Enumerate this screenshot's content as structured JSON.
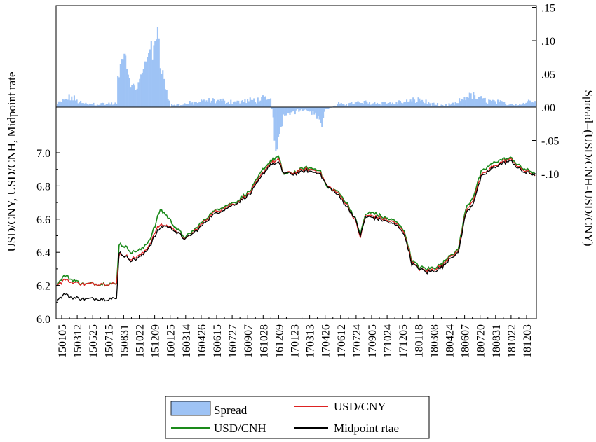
{
  "chart_data": {
    "type": "line",
    "title": "",
    "ylabel_left": "USD/CNY, USD/CNH, Midpoint rate",
    "ylabel_right": "Spread=(USD/CNH-USD/CNY)",
    "x_ticks": [
      "150105",
      "150312",
      "150525",
      "150715",
      "150831",
      "151022",
      "151209",
      "160125",
      "160314",
      "160426",
      "160615",
      "160727",
      "160907",
      "161028",
      "161209",
      "170123",
      "170313",
      "170426",
      "170612",
      "170724",
      "170905",
      "171024",
      "171205",
      "180118",
      "180308",
      "180424",
      "180607",
      "180720",
      "180831",
      "181022",
      "181203"
    ],
    "y_left": {
      "ticks": [
        "6.0",
        "6.2",
        "6.4",
        "6.6",
        "6.8",
        "7.0"
      ],
      "range": [
        6.0,
        7.0
      ]
    },
    "y_right": {
      "ticks": [
        ".15",
        ".10",
        ".05",
        ".00",
        "-.05",
        "-.10"
      ],
      "range": [
        -0.1,
        0.15
      ]
    },
    "legend": {
      "position": "bottom-center",
      "items": [
        {
          "label": "Spread",
          "kind": "bar",
          "color": "#9ec3f5"
        },
        {
          "label": "USD/CNY",
          "kind": "line",
          "color": "#dd2222"
        },
        {
          "label": "USD/CNH",
          "kind": "line",
          "color": "#1a8a1a"
        },
        {
          "label": "Midpoint rtae",
          "kind": "line",
          "color": "#000000"
        }
      ]
    },
    "series": [
      {
        "name": "USD/CNY",
        "color": "#dd2222",
        "anchors": [
          [
            0,
            6.21
          ],
          [
            3,
            6.22
          ],
          [
            6,
            6.24
          ],
          [
            10,
            6.22
          ],
          [
            20,
            6.21
          ],
          [
            36,
            6.21
          ],
          [
            46,
            6.21
          ],
          [
            48,
            6.39
          ],
          [
            52,
            6.38
          ],
          [
            58,
            6.36
          ],
          [
            66,
            6.39
          ],
          [
            72,
            6.45
          ],
          [
            76,
            6.52
          ],
          [
            80,
            6.57
          ],
          [
            84,
            6.56
          ],
          [
            90,
            6.55
          ],
          [
            94,
            6.51
          ],
          [
            100,
            6.48
          ],
          [
            110,
            6.55
          ],
          [
            120,
            6.63
          ],
          [
            130,
            6.67
          ],
          [
            140,
            6.7
          ],
          [
            150,
            6.76
          ],
          [
            160,
            6.88
          ],
          [
            166,
            6.94
          ],
          [
            172,
            6.96
          ],
          [
            176,
            6.88
          ],
          [
            184,
            6.88
          ],
          [
            194,
            6.9
          ],
          [
            204,
            6.89
          ],
          [
            210,
            6.8
          ],
          [
            218,
            6.76
          ],
          [
            226,
            6.68
          ],
          [
            232,
            6.59
          ],
          [
            236,
            6.49
          ],
          [
            240,
            6.62
          ],
          [
            246,
            6.62
          ],
          [
            254,
            6.6
          ],
          [
            262,
            6.58
          ],
          [
            268,
            6.55
          ],
          [
            272,
            6.47
          ],
          [
            276,
            6.34
          ],
          [
            282,
            6.3
          ],
          [
            288,
            6.29
          ],
          [
            294,
            6.3
          ],
          [
            300,
            6.32
          ],
          [
            306,
            6.38
          ],
          [
            312,
            6.4
          ],
          [
            318,
            6.64
          ],
          [
            324,
            6.72
          ],
          [
            330,
            6.86
          ],
          [
            336,
            6.9
          ],
          [
            342,
            6.93
          ],
          [
            348,
            6.95
          ],
          [
            354,
            6.96
          ],
          [
            358,
            6.92
          ],
          [
            364,
            6.89
          ],
          [
            372,
            6.87
          ]
        ]
      },
      {
        "name": "USD/CNH",
        "color": "#1a8a1a",
        "anchors": [
          [
            0,
            6.21
          ],
          [
            3,
            6.24
          ],
          [
            6,
            6.26
          ],
          [
            10,
            6.24
          ],
          [
            20,
            6.21
          ],
          [
            36,
            6.21
          ],
          [
            46,
            6.21
          ],
          [
            48,
            6.45
          ],
          [
            52,
            6.44
          ],
          [
            58,
            6.4
          ],
          [
            66,
            6.42
          ],
          [
            72,
            6.48
          ],
          [
            76,
            6.56
          ],
          [
            80,
            6.66
          ],
          [
            84,
            6.63
          ],
          [
            90,
            6.57
          ],
          [
            94,
            6.53
          ],
          [
            100,
            6.49
          ],
          [
            110,
            6.56
          ],
          [
            120,
            6.64
          ],
          [
            130,
            6.68
          ],
          [
            140,
            6.71
          ],
          [
            150,
            6.77
          ],
          [
            160,
            6.9
          ],
          [
            166,
            6.95
          ],
          [
            172,
            6.98
          ],
          [
            176,
            6.87
          ],
          [
            184,
            6.88
          ],
          [
            194,
            6.91
          ],
          [
            204,
            6.9
          ],
          [
            210,
            6.79
          ],
          [
            218,
            6.77
          ],
          [
            226,
            6.69
          ],
          [
            232,
            6.6
          ],
          [
            236,
            6.51
          ],
          [
            240,
            6.63
          ],
          [
            246,
            6.64
          ],
          [
            254,
            6.61
          ],
          [
            262,
            6.59
          ],
          [
            268,
            6.56
          ],
          [
            272,
            6.48
          ],
          [
            276,
            6.35
          ],
          [
            282,
            6.31
          ],
          [
            288,
            6.3
          ],
          [
            294,
            6.31
          ],
          [
            300,
            6.33
          ],
          [
            306,
            6.39
          ],
          [
            312,
            6.41
          ],
          [
            318,
            6.66
          ],
          [
            324,
            6.74
          ],
          [
            330,
            6.88
          ],
          [
            336,
            6.92
          ],
          [
            342,
            6.95
          ],
          [
            348,
            6.96
          ],
          [
            354,
            6.97
          ],
          [
            358,
            6.93
          ],
          [
            364,
            6.9
          ],
          [
            372,
            6.88
          ]
        ]
      },
      {
        "name": "Midpoint rtae",
        "color": "#000000",
        "anchors": [
          [
            0,
            6.12
          ],
          [
            3,
            6.13
          ],
          [
            6,
            6.15
          ],
          [
            10,
            6.13
          ],
          [
            20,
            6.12
          ],
          [
            36,
            6.12
          ],
          [
            46,
            6.12
          ],
          [
            48,
            6.4
          ],
          [
            52,
            6.38
          ],
          [
            58,
            6.35
          ],
          [
            66,
            6.38
          ],
          [
            72,
            6.44
          ],
          [
            76,
            6.5
          ],
          [
            80,
            6.55
          ],
          [
            84,
            6.56
          ],
          [
            90,
            6.54
          ],
          [
            94,
            6.51
          ],
          [
            100,
            6.48
          ],
          [
            110,
            6.54
          ],
          [
            120,
            6.62
          ],
          [
            130,
            6.66
          ],
          [
            140,
            6.7
          ],
          [
            150,
            6.75
          ],
          [
            160,
            6.87
          ],
          [
            166,
            6.93
          ],
          [
            172,
            6.94
          ],
          [
            176,
            6.88
          ],
          [
            184,
            6.87
          ],
          [
            194,
            6.89
          ],
          [
            204,
            6.88
          ],
          [
            210,
            6.8
          ],
          [
            218,
            6.75
          ],
          [
            226,
            6.67
          ],
          [
            232,
            6.6
          ],
          [
            236,
            6.5
          ],
          [
            240,
            6.61
          ],
          [
            246,
            6.61
          ],
          [
            254,
            6.59
          ],
          [
            262,
            6.57
          ],
          [
            268,
            6.54
          ],
          [
            272,
            6.46
          ],
          [
            276,
            6.33
          ],
          [
            282,
            6.3
          ],
          [
            288,
            6.28
          ],
          [
            294,
            6.29
          ],
          [
            300,
            6.31
          ],
          [
            306,
            6.37
          ],
          [
            312,
            6.39
          ],
          [
            318,
            6.63
          ],
          [
            324,
            6.7
          ],
          [
            330,
            6.85
          ],
          [
            336,
            6.89
          ],
          [
            342,
            6.92
          ],
          [
            348,
            6.94
          ],
          [
            354,
            6.95
          ],
          [
            358,
            6.91
          ],
          [
            364,
            6.88
          ],
          [
            372,
            6.87
          ]
        ]
      }
    ],
    "spread_anchors": [
      [
        0,
        0.005
      ],
      [
        10,
        0.015
      ],
      [
        20,
        0.005
      ],
      [
        36,
        0.005
      ],
      [
        46,
        0.005
      ],
      [
        47,
        0.04
      ],
      [
        50,
        0.07
      ],
      [
        52,
        0.095
      ],
      [
        54,
        0.06
      ],
      [
        58,
        0.03
      ],
      [
        62,
        0.03
      ],
      [
        66,
        0.05
      ],
      [
        70,
        0.08
      ],
      [
        72,
        0.1
      ],
      [
        74,
        0.07
      ],
      [
        76,
        0.1
      ],
      [
        78,
        0.13
      ],
      [
        80,
        0.07
      ],
      [
        82,
        0.05
      ],
      [
        84,
        0.03
      ],
      [
        88,
        0.002
      ],
      [
        100,
        0.005
      ],
      [
        120,
        0.01
      ],
      [
        140,
        0.008
      ],
      [
        150,
        0.01
      ],
      [
        160,
        0.012
      ],
      [
        166,
        0.01
      ],
      [
        168,
        -0.02
      ],
      [
        170,
        -0.065
      ],
      [
        172,
        -0.045
      ],
      [
        174,
        -0.03
      ],
      [
        178,
        -0.01
      ],
      [
        190,
        -0.005
      ],
      [
        200,
        -0.008
      ],
      [
        204,
        -0.02
      ],
      [
        206,
        -0.03
      ],
      [
        208,
        -0.005
      ],
      [
        220,
        0.005
      ],
      [
        240,
        0.007
      ],
      [
        260,
        0.006
      ],
      [
        276,
        0.009
      ],
      [
        282,
        0.012
      ],
      [
        290,
        0.005
      ],
      [
        300,
        0.002
      ],
      [
        310,
        0.005
      ],
      [
        320,
        0.018
      ],
      [
        330,
        0.012
      ],
      [
        350,
        0.005
      ],
      [
        360,
        0.004
      ],
      [
        372,
        0.012
      ]
    ]
  }
}
